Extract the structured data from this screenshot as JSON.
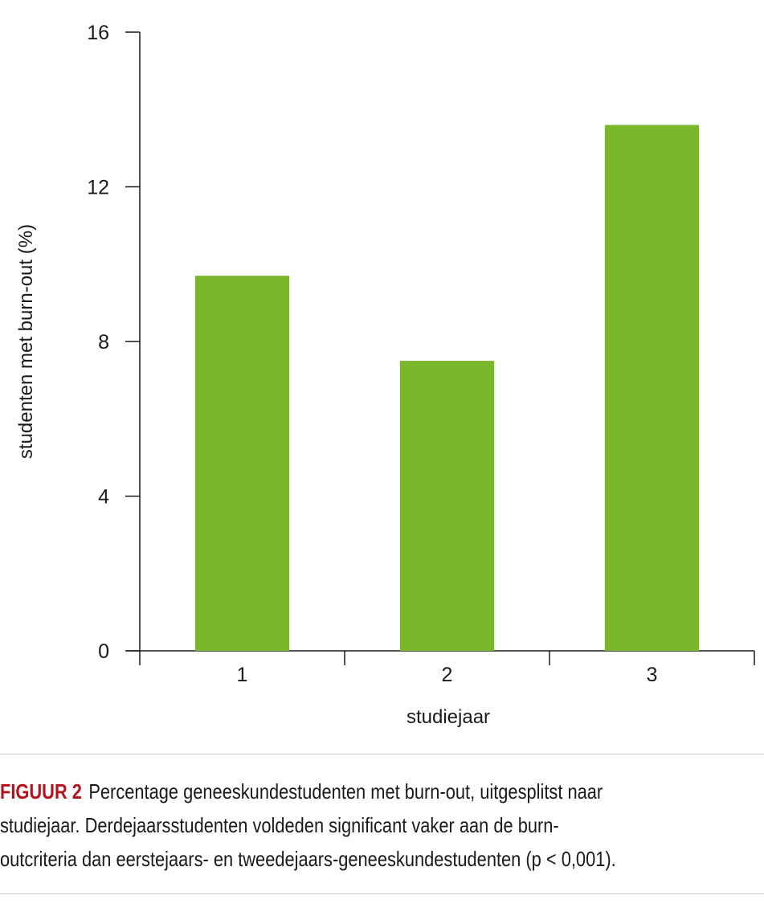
{
  "chart_data": {
    "type": "bar",
    "categories": [
      "1",
      "2",
      "3"
    ],
    "values": [
      9.7,
      7.5,
      13.6
    ],
    "ylabel": "studenten met burn-out (%)",
    "xlabel": "studiejaar",
    "ylim": [
      0,
      16
    ],
    "yticks": [
      "0",
      "4",
      "8",
      "12",
      "16"
    ],
    "bar_color": "#7ab82b",
    "grid": false,
    "legend": "none"
  },
  "caption": {
    "label": "FIGUUR 2",
    "lines": [
      "Percentage geneeskundestudenten met burn-out, uitgesplitst naar",
      "studiejaar. Derdejaarsstudenten voldeden significant vaker aan de burn-",
      "outcriteria dan eerstejaars- en tweedejaars-geneeskundestudenten (p < 0,001)."
    ]
  }
}
